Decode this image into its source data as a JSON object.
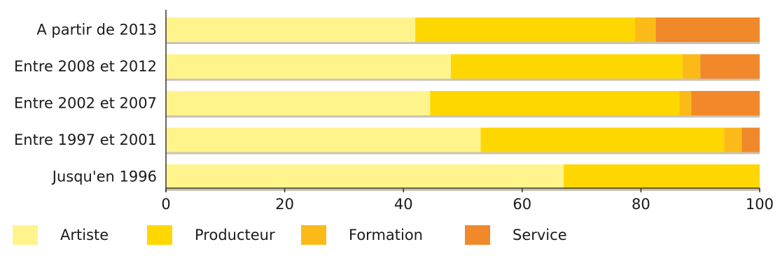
{
  "chart_data": {
    "type": "bar",
    "orientation": "horizontal",
    "stacked": true,
    "categories": [
      "A partir de 2013",
      "Entre 2008 et 2012",
      "Entre 2002 et 2007",
      "Entre 1997 et 2001",
      "Jusqu'en 1996"
    ],
    "series": [
      {
        "name": "Artiste",
        "color": "#FFF48C",
        "values": [
          42,
          48,
          44.5,
          53,
          67
        ]
      },
      {
        "name": "Producteur",
        "color": "#FFD700",
        "values": [
          37,
          39,
          42,
          41,
          33
        ]
      },
      {
        "name": "Formation",
        "color": "#FBBA18",
        "values": [
          3.5,
          3,
          2,
          3,
          0
        ]
      },
      {
        "name": "Service",
        "color": "#F18829",
        "values": [
          17.5,
          10,
          11.5,
          3,
          0
        ]
      }
    ],
    "xlim": [
      0,
      100
    ],
    "xticks": [
      "0",
      "20",
      "40",
      "60",
      "80",
      "100"
    ],
    "title": "",
    "xlabel": "",
    "ylabel": "",
    "grid": false,
    "legend_position": "bottom"
  }
}
